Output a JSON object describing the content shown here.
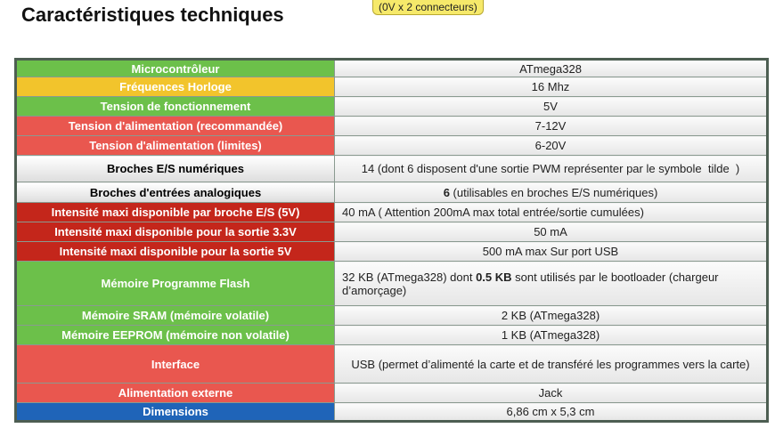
{
  "header": {
    "title": "Caractéristiques techniques",
    "badge": "(0V x 2 connecteurs)"
  },
  "table": {
    "rows": [
      [
        "Microcontrôleur",
        "ATmega328"
      ],
      [
        "Fréquences Horloge",
        "16 Mhz"
      ],
      [
        "Tension de fonctionnement",
        "5V"
      ],
      [
        "Tension d'alimentation (recommandée)",
        "7-12V"
      ],
      [
        "Tension d'alimentation (limites)",
        "6-20V"
      ],
      [
        "Broches E/S numériques",
        "14 (dont 6 disposent d'une sortie PWM représenter par le symbole  tilde  )"
      ],
      [
        "Broches d'entrées analogiques",
        [
          "6",
          " (utilisables en broches E/S numériques)"
        ]
      ],
      [
        "Intensité maxi disponible par broche E/S (5V)",
        "40 mA  ( Attention 200mA max total entrée/sortie cumulées)"
      ],
      [
        "Intensité maxi disponible pour la sortie 3.3V",
        "50 mA"
      ],
      [
        "Intensité maxi disponible pour la sortie 5V",
        "500 mA max Sur port USB"
      ],
      [
        "Mémoire Programme Flash",
        [
          "32 KB (ATmega328) dont ",
          "0.5 KB",
          " sont utilisés par le bootloader (chargeur d’amorçage)"
        ]
      ],
      [
        "Mémoire SRAM (mémoire volatile)",
        "2 KB (ATmega328)"
      ],
      [
        "Mémoire EEPROM (mémoire non volatile)",
        "1 KB (ATmega328)"
      ],
      [
        "Interface",
        "USB (permet d’alimenté la carte et de transféré les programmes vers la carte)"
      ],
      [
        "Alimentation externe",
        "Jack"
      ],
      [
        "Dimensions",
        "6,86 cm x 5,3 cm"
      ]
    ]
  }
}
